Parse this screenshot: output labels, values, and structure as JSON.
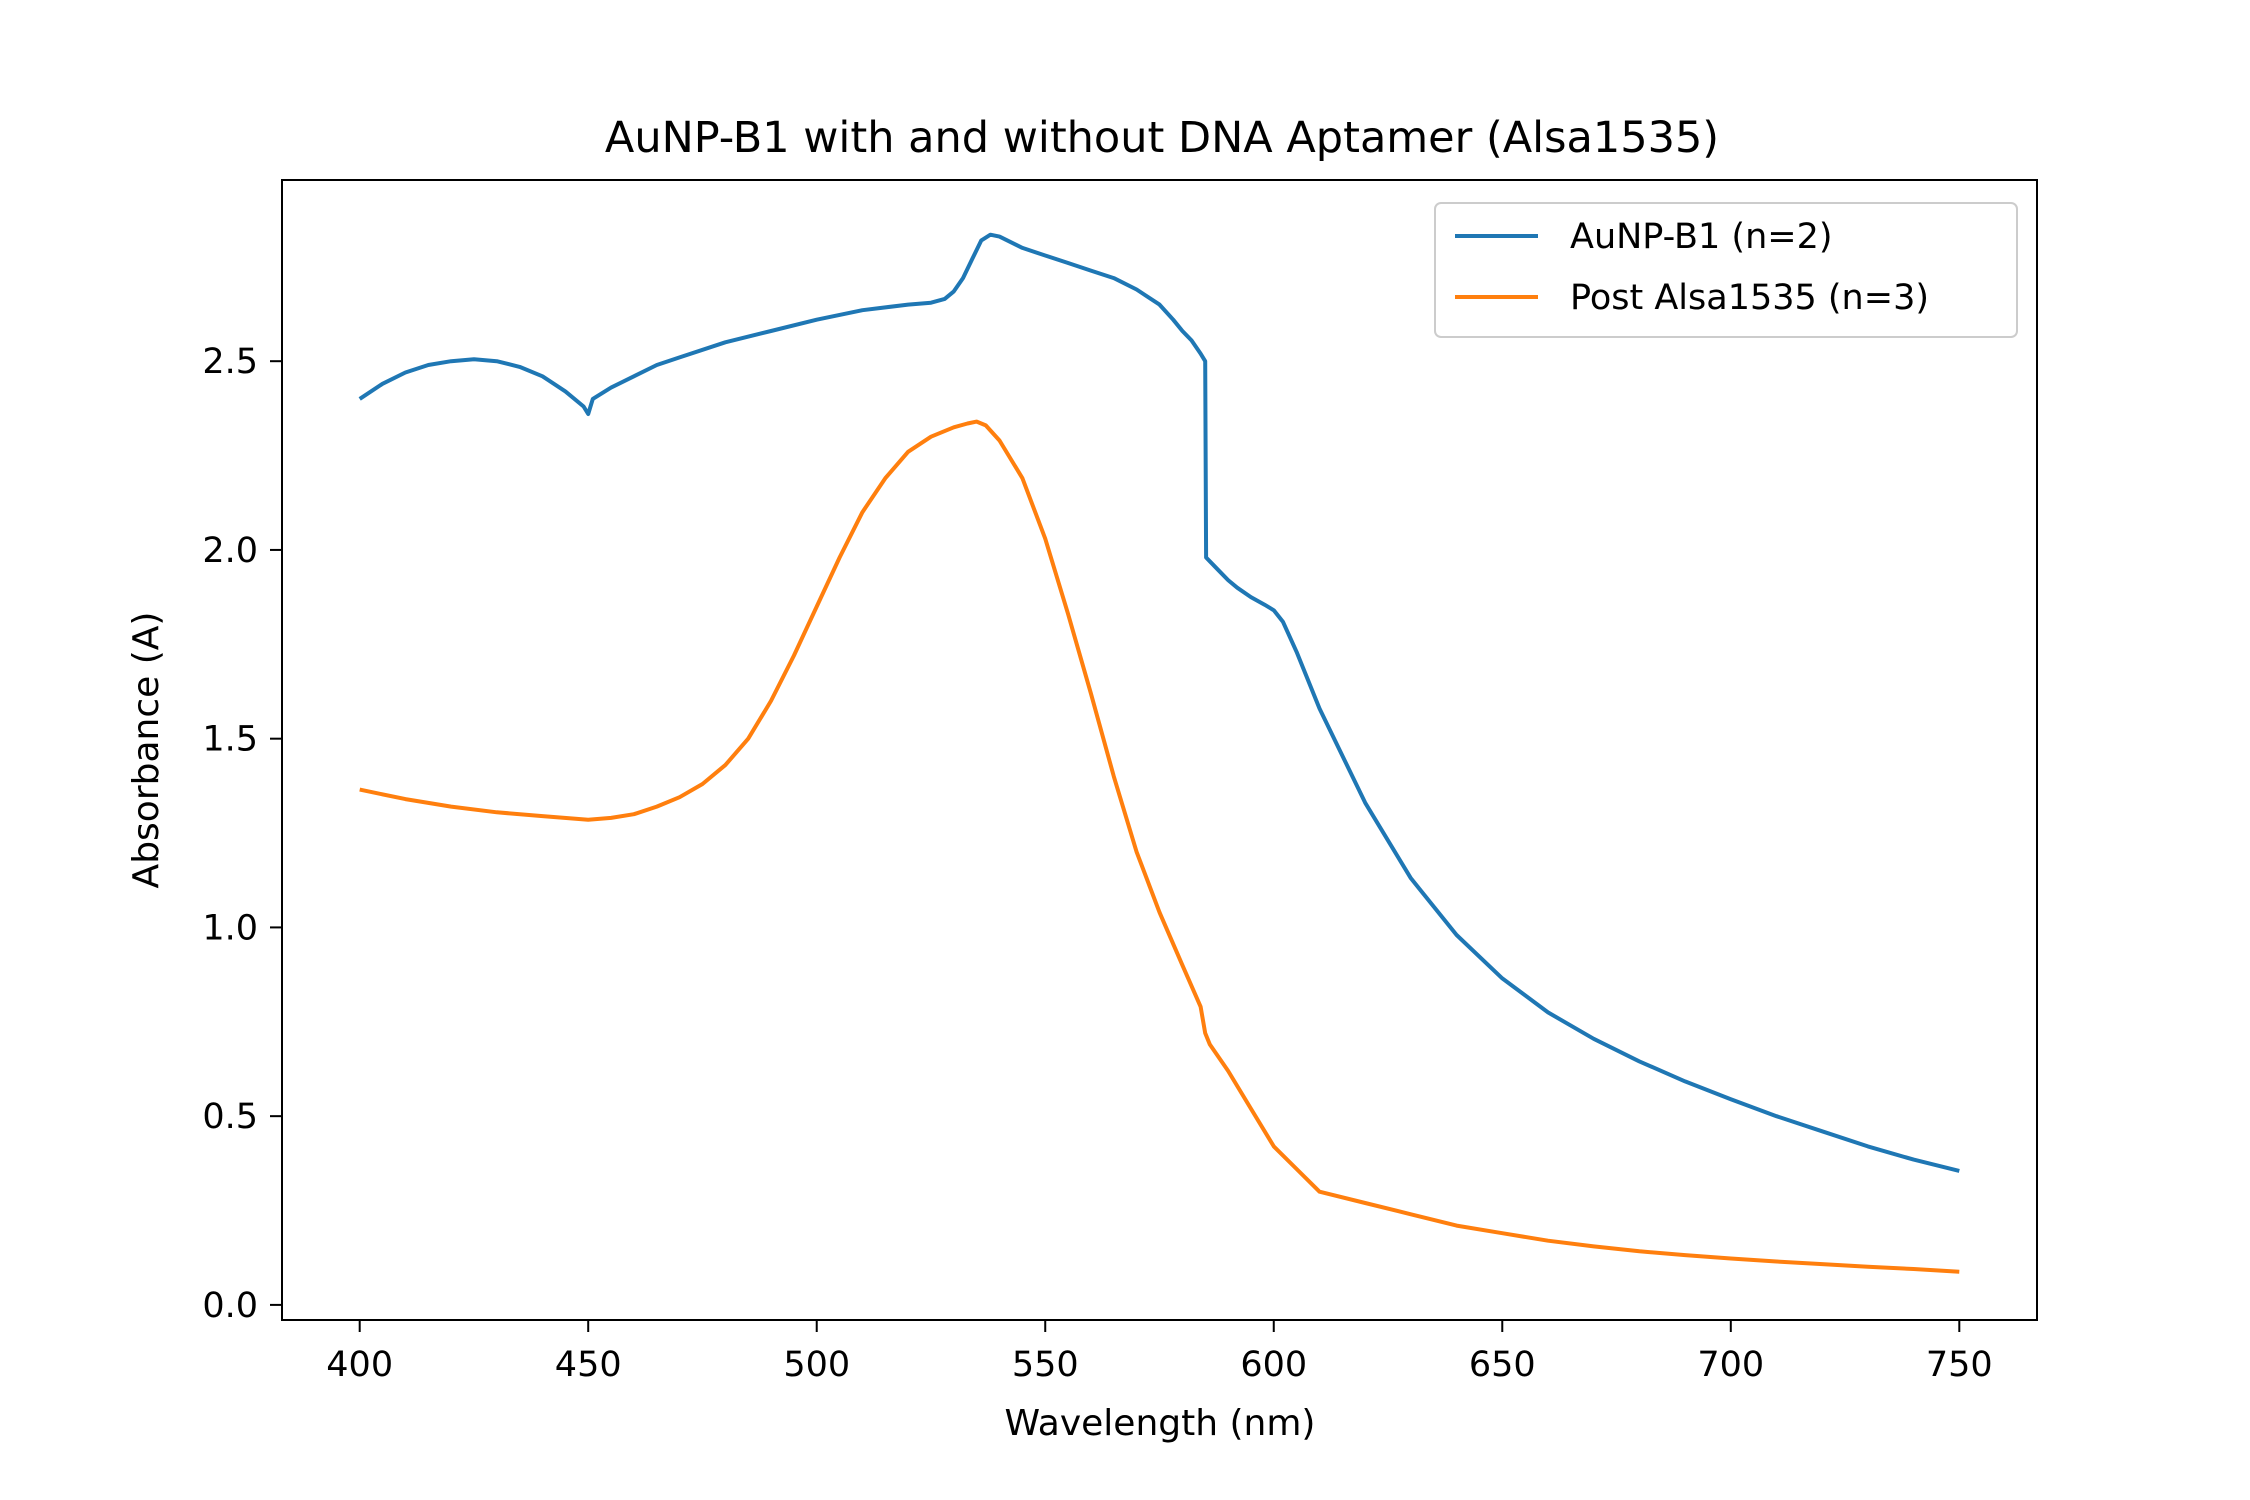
{
  "chart_data": {
    "type": "line",
    "title": "AuNP-B1 with and without DNA Aptamer (Alsa1535)",
    "xlabel": "Wavelength (nm)",
    "ylabel": "Absorbance (A)",
    "xlim": [
      383,
      767
    ],
    "ylim": [
      -0.04,
      2.98
    ],
    "xticks": [
      400,
      450,
      500,
      550,
      600,
      650,
      700,
      750
    ],
    "xtick_labels": [
      "400",
      "450",
      "500",
      "550",
      "600",
      "650",
      "700",
      "750"
    ],
    "yticks": [
      0.0,
      0.5,
      1.0,
      1.5,
      2.0,
      2.5
    ],
    "ytick_labels": [
      "0.0",
      "0.5",
      "1.0",
      "1.5",
      "2.0",
      "2.5"
    ],
    "grid": false,
    "legend_position": "top-right",
    "series": [
      {
        "name": "AuNP-B1 (n=2)",
        "color": "#1f77b4",
        "x": [
          400,
          405,
          410,
          415,
          420,
          425,
          430,
          435,
          440,
          445,
          449,
          450,
          451,
          455,
          460,
          465,
          470,
          480,
          490,
          500,
          510,
          520,
          525,
          528,
          530,
          532,
          534,
          536,
          538,
          540,
          545,
          550,
          555,
          560,
          565,
          570,
          575,
          578,
          580,
          582,
          584,
          585,
          585.2,
          586,
          588,
          590,
          592,
          595,
          598,
          600,
          602,
          605,
          610,
          620,
          630,
          640,
          650,
          660,
          670,
          680,
          690,
          700,
          710,
          720,
          730,
          740,
          750
        ],
        "y": [
          2.4,
          2.44,
          2.47,
          2.49,
          2.5,
          2.505,
          2.5,
          2.485,
          2.46,
          2.42,
          2.38,
          2.36,
          2.4,
          2.43,
          2.46,
          2.49,
          2.51,
          2.55,
          2.58,
          2.61,
          2.635,
          2.65,
          2.655,
          2.665,
          2.685,
          2.72,
          2.77,
          2.82,
          2.835,
          2.83,
          2.8,
          2.78,
          2.76,
          2.74,
          2.72,
          2.69,
          2.65,
          2.61,
          2.58,
          2.555,
          2.52,
          2.5,
          1.98,
          1.97,
          1.945,
          1.92,
          1.9,
          1.875,
          1.855,
          1.84,
          1.81,
          1.73,
          1.58,
          1.33,
          1.13,
          0.98,
          0.865,
          0.775,
          0.705,
          0.645,
          0.592,
          0.545,
          0.5,
          0.46,
          0.42,
          0.385,
          0.355
        ]
      },
      {
        "name": "Post Alsa1535 (n=3)",
        "color": "#ff7f0e",
        "x": [
          400,
          410,
          420,
          430,
          440,
          450,
          455,
          460,
          465,
          470,
          475,
          480,
          485,
          490,
          495,
          500,
          505,
          510,
          515,
          520,
          525,
          530,
          533,
          535,
          537,
          540,
          545,
          550,
          555,
          560,
          565,
          570,
          575,
          580,
          584,
          585,
          586,
          590,
          595,
          600,
          605,
          610,
          620,
          630,
          640,
          650,
          660,
          670,
          680,
          690,
          700,
          710,
          720,
          730,
          740,
          750
        ],
        "y": [
          1.365,
          1.34,
          1.32,
          1.305,
          1.295,
          1.285,
          1.29,
          1.3,
          1.32,
          1.345,
          1.38,
          1.43,
          1.5,
          1.6,
          1.72,
          1.85,
          1.98,
          2.1,
          2.19,
          2.26,
          2.3,
          2.325,
          2.335,
          2.34,
          2.33,
          2.29,
          2.19,
          2.03,
          1.83,
          1.62,
          1.4,
          1.2,
          1.04,
          0.9,
          0.79,
          0.72,
          0.69,
          0.62,
          0.52,
          0.42,
          0.36,
          0.3,
          0.27,
          0.24,
          0.21,
          0.19,
          0.17,
          0.155,
          0.142,
          0.132,
          0.123,
          0.115,
          0.108,
          0.101,
          0.095,
          0.088
        ]
      }
    ]
  }
}
